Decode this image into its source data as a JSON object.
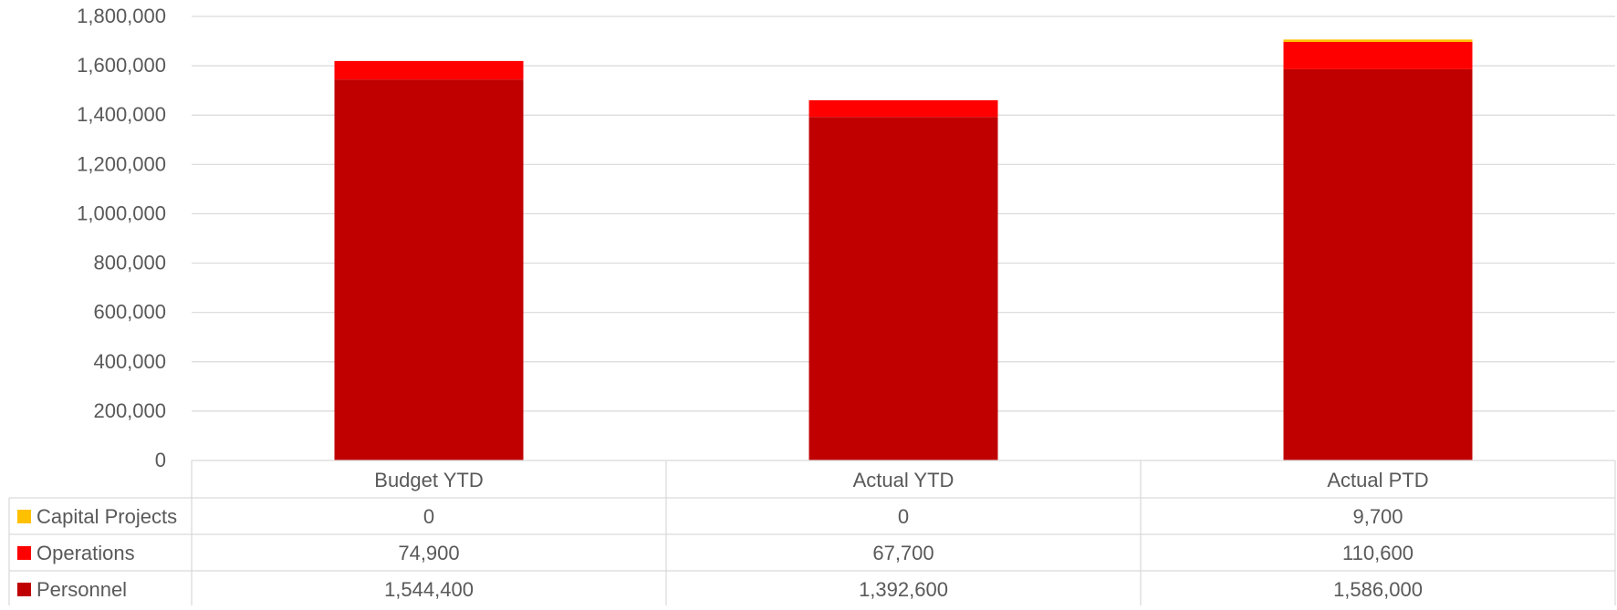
{
  "chart_data": {
    "type": "bar",
    "stacked": true,
    "categories": [
      "Budget YTD",
      "Actual YTD",
      "Actual PTD"
    ],
    "series": [
      {
        "name": "Personnel",
        "color": "#C00000",
        "values": [
          1544400,
          1392600,
          1586000
        ]
      },
      {
        "name": "Operations",
        "color": "#FF0000",
        "values": [
          74900,
          67700,
          110600
        ]
      },
      {
        "name": "Capital Projects",
        "color": "#FFC000",
        "values": [
          0,
          0,
          9700
        ]
      }
    ],
    "table_rows": [
      {
        "name": "Capital Projects",
        "color": "#FFC000",
        "cells": [
          "0",
          "0",
          "9,700"
        ]
      },
      {
        "name": "Operations",
        "color": "#FF0000",
        "cells": [
          "74,900",
          "67,700",
          "110,600"
        ]
      },
      {
        "name": "Personnel",
        "color": "#C00000",
        "cells": [
          "1,544,400",
          "1,392,600",
          "1,586,000"
        ]
      }
    ],
    "ylim": [
      0,
      1800000
    ],
    "yticks": [
      0,
      200000,
      400000,
      600000,
      800000,
      1000000,
      1200000,
      1400000,
      1600000,
      1800000
    ],
    "ytick_labels": [
      "0",
      "200,000",
      "400,000",
      "600,000",
      "800,000",
      "1,000,000",
      "1,200,000",
      "1,400,000",
      "1,600,000",
      "1,800,000"
    ],
    "grid": true,
    "legend": "data-table",
    "gridline_color": "#D9D9D9",
    "text_color": "#595959"
  }
}
